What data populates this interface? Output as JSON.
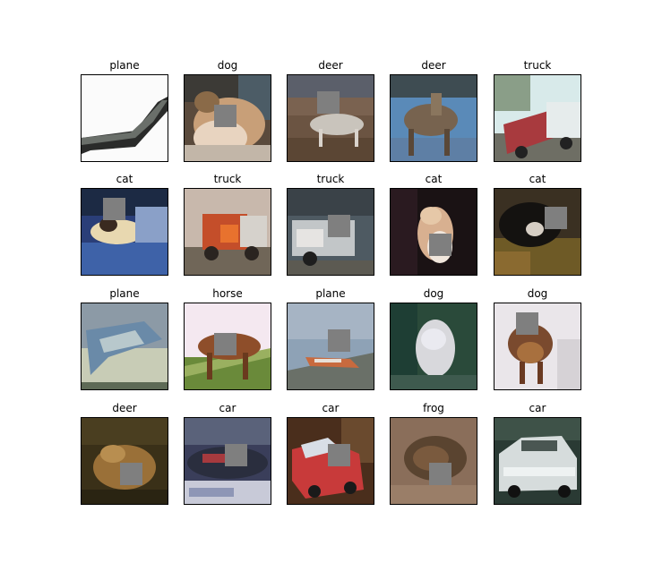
{
  "figure": {
    "cells": [
      {
        "label": "plane",
        "scene": "plane-white",
        "cutout": "none"
      },
      {
        "label": "dog",
        "scene": "dog",
        "cutout": "center-left"
      },
      {
        "label": "deer",
        "scene": "deer-field",
        "cutout": "upper-center"
      },
      {
        "label": "deer",
        "scene": "deer-blue",
        "cutout": "none"
      },
      {
        "label": "truck",
        "scene": "truck-red",
        "cutout": "none"
      },
      {
        "label": "cat",
        "scene": "cat-blue",
        "cutout": "upper-left"
      },
      {
        "label": "truck",
        "scene": "truck-orange",
        "cutout": "none"
      },
      {
        "label": "truck",
        "scene": "truck-gray",
        "cutout": "center-right"
      },
      {
        "label": "cat",
        "scene": "cat-dark",
        "cutout": "lower-center"
      },
      {
        "label": "cat",
        "scene": "cat-black",
        "cutout": "upper-right"
      },
      {
        "label": "plane",
        "scene": "plane-glider",
        "cutout": "none"
      },
      {
        "label": "horse",
        "scene": "horse",
        "cutout": "center-left"
      },
      {
        "label": "plane",
        "scene": "plane-sky",
        "cutout": "center-right"
      },
      {
        "label": "dog",
        "scene": "dog-white",
        "cutout": "none"
      },
      {
        "label": "dog",
        "scene": "dog-brown",
        "cutout": "upper-left"
      },
      {
        "label": "deer",
        "scene": "deer-brown",
        "cutout": "lower-center"
      },
      {
        "label": "car",
        "scene": "car-dark",
        "cutout": "center-right"
      },
      {
        "label": "car",
        "scene": "car-red",
        "cutout": "center-right"
      },
      {
        "label": "frog",
        "scene": "frog",
        "cutout": "lower-center"
      },
      {
        "label": "car",
        "scene": "car-white",
        "cutout": "none"
      }
    ]
  }
}
